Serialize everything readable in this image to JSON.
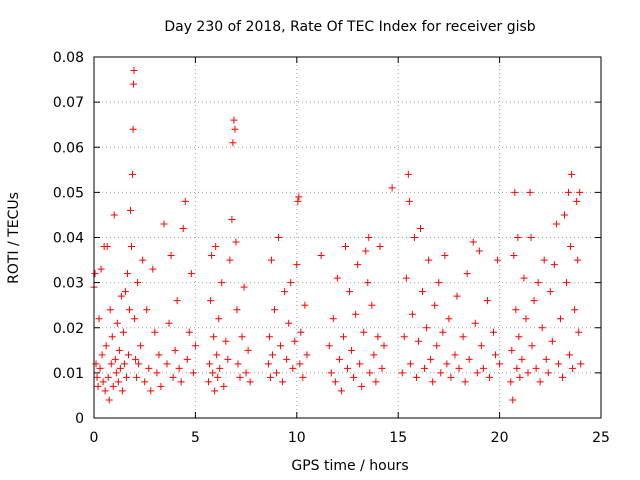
{
  "chart_data": {
    "type": "scatter",
    "title": "Day 230 of 2018, Rate Of TEC Index for receiver gisb",
    "xlabel": "GPS time / hours",
    "ylabel": "ROTI / TECUs",
    "xlim": [
      0,
      25
    ],
    "ylim": [
      0,
      0.08
    ],
    "x_ticks": [
      0,
      5,
      10,
      15,
      20,
      25
    ],
    "y_ticks": [
      0,
      0.01,
      0.02,
      0.03,
      0.04,
      0.05,
      0.06,
      0.07,
      0.08
    ],
    "x_tick_labels": [
      "0",
      "5",
      "10",
      "15",
      "20",
      "25"
    ],
    "y_tick_labels": [
      "0",
      "0.01",
      "0.02",
      "0.03",
      "0.04",
      "0.05",
      "0.06",
      "0.07",
      "0.08"
    ],
    "grid": true,
    "marker": "+",
    "marker_color": "#ff0000",
    "series": [
      {
        "name": "ROTI",
        "points": [
          [
            0.0,
            0.029
          ],
          [
            0.05,
            0.032
          ],
          [
            0.1,
            0.012
          ],
          [
            0.15,
            0.009
          ],
          [
            0.2,
            0.007
          ],
          [
            0.25,
            0.022
          ],
          [
            0.3,
            0.011
          ],
          [
            0.35,
            0.033
          ],
          [
            0.4,
            0.014
          ],
          [
            0.45,
            0.008
          ],
          [
            0.5,
            0.038
          ],
          [
            0.55,
            0.006
          ],
          [
            0.6,
            0.016
          ],
          [
            0.65,
            0.038
          ],
          [
            0.7,
            0.009
          ],
          [
            0.75,
            0.004
          ],
          [
            0.8,
            0.024
          ],
          [
            0.85,
            0.012
          ],
          [
            0.9,
            0.018
          ],
          [
            0.95,
            0.007
          ],
          [
            1.0,
            0.045
          ],
          [
            1.05,
            0.013
          ],
          [
            1.1,
            0.01
          ],
          [
            1.15,
            0.021
          ],
          [
            1.2,
            0.008
          ],
          [
            1.25,
            0.015
          ],
          [
            1.3,
            0.011
          ],
          [
            1.35,
            0.027
          ],
          [
            1.4,
            0.006
          ],
          [
            1.45,
            0.019
          ],
          [
            1.5,
            0.012
          ],
          [
            1.55,
            0.028
          ],
          [
            1.6,
            0.009
          ],
          [
            1.65,
            0.032
          ],
          [
            1.7,
            0.014
          ],
          [
            1.75,
            0.024
          ],
          [
            1.8,
            0.046
          ],
          [
            1.85,
            0.038
          ],
          [
            1.9,
            0.054
          ],
          [
            1.93,
            0.064
          ],
          [
            1.95,
            0.074
          ],
          [
            1.97,
            0.077
          ],
          [
            2.0,
            0.022
          ],
          [
            2.05,
            0.013
          ],
          [
            2.1,
            0.009
          ],
          [
            2.15,
            0.03
          ],
          [
            2.2,
            0.012
          ],
          [
            2.3,
            0.016
          ],
          [
            2.4,
            0.035
          ],
          [
            2.5,
            0.008
          ],
          [
            2.6,
            0.024
          ],
          [
            2.7,
            0.011
          ],
          [
            2.8,
            0.006
          ],
          [
            2.9,
            0.033
          ],
          [
            3.0,
            0.019
          ],
          [
            3.1,
            0.01
          ],
          [
            3.2,
            0.014
          ],
          [
            3.3,
            0.007
          ],
          [
            3.45,
            0.043
          ],
          [
            3.6,
            0.012
          ],
          [
            3.7,
            0.021
          ],
          [
            3.8,
            0.036
          ],
          [
            3.9,
            0.009
          ],
          [
            4.0,
            0.015
          ],
          [
            4.1,
            0.026
          ],
          [
            4.2,
            0.011
          ],
          [
            4.3,
            0.008
          ],
          [
            4.4,
            0.042
          ],
          [
            4.5,
            0.048
          ],
          [
            4.6,
            0.013
          ],
          [
            4.7,
            0.019
          ],
          [
            4.8,
            0.032
          ],
          [
            4.9,
            0.01
          ],
          [
            5.0,
            0.016
          ],
          [
            5.65,
            0.008
          ],
          [
            5.7,
            0.012
          ],
          [
            5.75,
            0.026
          ],
          [
            5.8,
            0.036
          ],
          [
            5.85,
            0.01
          ],
          [
            5.9,
            0.018
          ],
          [
            5.95,
            0.006
          ],
          [
            6.0,
            0.038
          ],
          [
            6.05,
            0.014
          ],
          [
            6.1,
            0.009
          ],
          [
            6.15,
            0.022
          ],
          [
            6.2,
            0.011
          ],
          [
            6.3,
            0.03
          ],
          [
            6.4,
            0.007
          ],
          [
            6.5,
            0.017
          ],
          [
            6.6,
            0.013
          ],
          [
            6.7,
            0.035
          ],
          [
            6.8,
            0.044
          ],
          [
            6.85,
            0.061
          ],
          [
            6.9,
            0.066
          ],
          [
            6.95,
            0.064
          ],
          [
            7.0,
            0.039
          ],
          [
            7.05,
            0.024
          ],
          [
            7.1,
            0.012
          ],
          [
            7.2,
            0.009
          ],
          [
            7.3,
            0.018
          ],
          [
            7.4,
            0.029
          ],
          [
            7.5,
            0.01
          ],
          [
            7.6,
            0.015
          ],
          [
            7.7,
            0.008
          ],
          [
            8.6,
            0.012
          ],
          [
            8.65,
            0.018
          ],
          [
            8.7,
            0.009
          ],
          [
            8.75,
            0.035
          ],
          [
            8.8,
            0.014
          ],
          [
            8.9,
            0.024
          ],
          [
            9.0,
            0.01
          ],
          [
            9.1,
            0.04
          ],
          [
            9.2,
            0.016
          ],
          [
            9.3,
            0.008
          ],
          [
            9.4,
            0.028
          ],
          [
            9.5,
            0.013
          ],
          [
            9.6,
            0.021
          ],
          [
            9.7,
            0.03
          ],
          [
            9.8,
            0.011
          ],
          [
            9.9,
            0.017
          ],
          [
            10.0,
            0.034
          ],
          [
            10.05,
            0.048
          ],
          [
            10.1,
            0.049
          ],
          [
            10.15,
            0.012
          ],
          [
            10.2,
            0.019
          ],
          [
            10.3,
            0.009
          ],
          [
            10.4,
            0.025
          ],
          [
            10.5,
            0.014
          ],
          [
            11.2,
            0.036
          ],
          [
            11.6,
            0.016
          ],
          [
            11.7,
            0.01
          ],
          [
            11.8,
            0.022
          ],
          [
            11.9,
            0.008
          ],
          [
            12.0,
            0.031
          ],
          [
            12.1,
            0.013
          ],
          [
            12.2,
            0.006
          ],
          [
            12.3,
            0.018
          ],
          [
            12.4,
            0.038
          ],
          [
            12.5,
            0.011
          ],
          [
            12.6,
            0.028
          ],
          [
            12.7,
            0.015
          ],
          [
            12.8,
            0.009
          ],
          [
            12.9,
            0.023
          ],
          [
            13.0,
            0.034
          ],
          [
            13.1,
            0.012
          ],
          [
            13.2,
            0.007
          ],
          [
            13.3,
            0.019
          ],
          [
            13.4,
            0.037
          ],
          [
            13.5,
            0.03
          ],
          [
            13.55,
            0.04
          ],
          [
            13.6,
            0.01
          ],
          [
            13.7,
            0.025
          ],
          [
            13.8,
            0.014
          ],
          [
            13.9,
            0.008
          ],
          [
            14.0,
            0.018
          ],
          [
            14.1,
            0.038
          ],
          [
            14.2,
            0.011
          ],
          [
            14.3,
            0.016
          ],
          [
            14.7,
            0.051
          ],
          [
            15.2,
            0.01
          ],
          [
            15.3,
            0.018
          ],
          [
            15.4,
            0.031
          ],
          [
            15.5,
            0.054
          ],
          [
            15.55,
            0.048
          ],
          [
            15.6,
            0.012
          ],
          [
            15.7,
            0.023
          ],
          [
            15.8,
            0.04
          ],
          [
            15.9,
            0.009
          ],
          [
            16.0,
            0.017
          ],
          [
            16.1,
            0.042
          ],
          [
            16.2,
            0.028
          ],
          [
            16.3,
            0.011
          ],
          [
            16.4,
            0.02
          ],
          [
            16.5,
            0.035
          ],
          [
            16.6,
            0.013
          ],
          [
            16.7,
            0.008
          ],
          [
            16.8,
            0.025
          ],
          [
            16.9,
            0.016
          ],
          [
            17.0,
            0.03
          ],
          [
            17.1,
            0.01
          ],
          [
            17.2,
            0.019
          ],
          [
            17.3,
            0.036
          ],
          [
            17.4,
            0.012
          ],
          [
            17.5,
            0.022
          ],
          [
            17.6,
            0.009
          ],
          [
            17.8,
            0.014
          ],
          [
            17.9,
            0.027
          ],
          [
            18.0,
            0.011
          ],
          [
            18.2,
            0.018
          ],
          [
            18.3,
            0.008
          ],
          [
            18.4,
            0.032
          ],
          [
            18.5,
            0.013
          ],
          [
            18.7,
            0.039
          ],
          [
            18.8,
            0.021
          ],
          [
            18.9,
            0.01
          ],
          [
            19.0,
            0.037
          ],
          [
            19.1,
            0.016
          ],
          [
            19.2,
            0.011
          ],
          [
            19.4,
            0.026
          ],
          [
            19.5,
            0.009
          ],
          [
            19.7,
            0.019
          ],
          [
            19.8,
            0.014
          ],
          [
            19.9,
            0.035
          ],
          [
            20.0,
            0.012
          ],
          [
            20.55,
            0.008
          ],
          [
            20.6,
            0.015
          ],
          [
            20.65,
            0.004
          ],
          [
            20.7,
            0.036
          ],
          [
            20.75,
            0.05
          ],
          [
            20.8,
            0.024
          ],
          [
            20.85,
            0.011
          ],
          [
            20.9,
            0.04
          ],
          [
            20.95,
            0.018
          ],
          [
            21.0,
            0.009
          ],
          [
            21.1,
            0.013
          ],
          [
            21.2,
            0.031
          ],
          [
            21.3,
            0.022
          ],
          [
            21.4,
            0.01
          ],
          [
            21.5,
            0.05
          ],
          [
            21.55,
            0.04
          ],
          [
            21.6,
            0.016
          ],
          [
            21.7,
            0.026
          ],
          [
            21.8,
            0.011
          ],
          [
            21.9,
            0.03
          ],
          [
            22.0,
            0.008
          ],
          [
            22.1,
            0.02
          ],
          [
            22.2,
            0.035
          ],
          [
            22.3,
            0.013
          ],
          [
            22.4,
            0.01
          ],
          [
            22.5,
            0.028
          ],
          [
            22.6,
            0.017
          ],
          [
            22.7,
            0.034
          ],
          [
            22.8,
            0.043
          ],
          [
            22.9,
            0.012
          ],
          [
            23.0,
            0.022
          ],
          [
            23.1,
            0.009
          ],
          [
            23.2,
            0.045
          ],
          [
            23.3,
            0.03
          ],
          [
            23.4,
            0.05
          ],
          [
            23.45,
            0.014
          ],
          [
            23.5,
            0.038
          ],
          [
            23.55,
            0.054
          ],
          [
            23.6,
            0.011
          ],
          [
            23.7,
            0.024
          ],
          [
            23.8,
            0.048
          ],
          [
            23.85,
            0.035
          ],
          [
            23.9,
            0.019
          ],
          [
            23.95,
            0.05
          ],
          [
            24.0,
            0.012
          ]
        ]
      }
    ]
  }
}
